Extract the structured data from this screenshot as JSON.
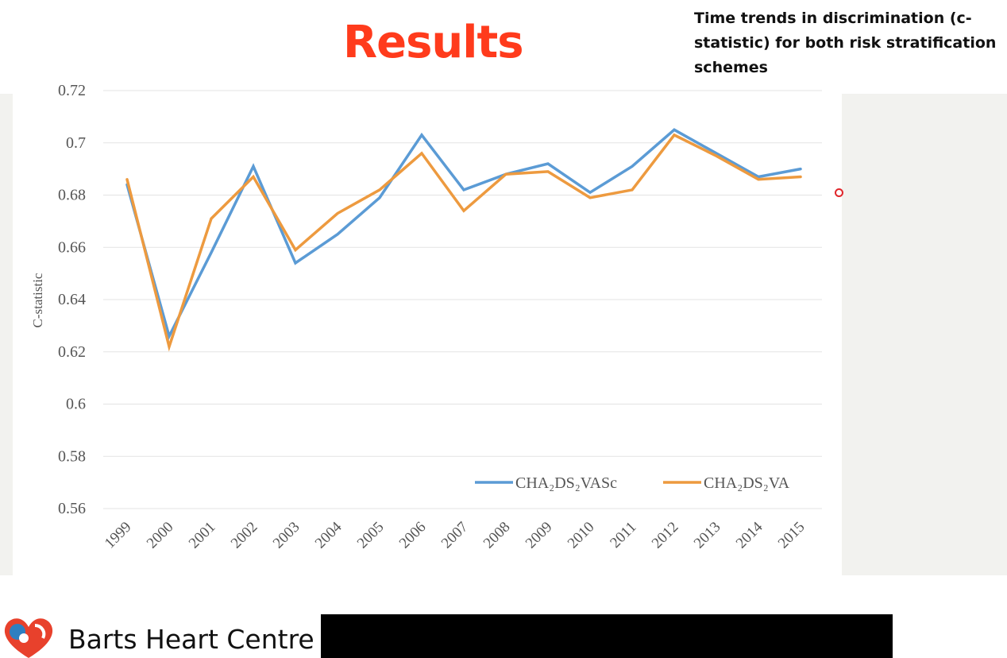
{
  "slide": {
    "title": "Results",
    "caption": "Time trends in discrimination (c-statistic) for both risk stratification schemes"
  },
  "footer": {
    "org_name": "Barts Heart Centre"
  },
  "colors": {
    "title": "#ff3b1c",
    "series_1": "#5b9bd5",
    "series_2": "#ed9a3f"
  },
  "chart_data": {
    "type": "line",
    "ylabel": "C-statistic",
    "xlabel": "",
    "ylim": [
      0.56,
      0.72
    ],
    "yticks": [
      0.56,
      0.58,
      0.6,
      0.62,
      0.64,
      0.66,
      0.68,
      0.7,
      0.72
    ],
    "grid": "horizontal",
    "legend_position": "bottom-right",
    "x": [
      "1999",
      "2000",
      "2001",
      "2002",
      "2003",
      "2004",
      "2005",
      "2006",
      "2007",
      "2008",
      "2009",
      "2010",
      "2011",
      "2012",
      "2013",
      "2014",
      "2015"
    ],
    "series": [
      {
        "name": "CHA₂DS₂VASc",
        "color": "#5b9bd5",
        "values": [
          0.684,
          0.626,
          0.658,
          0.691,
          0.654,
          0.665,
          0.679,
          0.703,
          0.682,
          0.688,
          0.692,
          0.681,
          0.691,
          0.705,
          0.696,
          0.687,
          0.69
        ]
      },
      {
        "name": "CHA₂DS₂VA",
        "color": "#ed9a3f",
        "values": [
          0.686,
          0.622,
          0.671,
          0.687,
          0.659,
          0.673,
          0.682,
          0.696,
          0.674,
          0.688,
          0.689,
          0.679,
          0.682,
          0.703,
          0.695,
          0.686,
          0.687
        ]
      }
    ]
  }
}
